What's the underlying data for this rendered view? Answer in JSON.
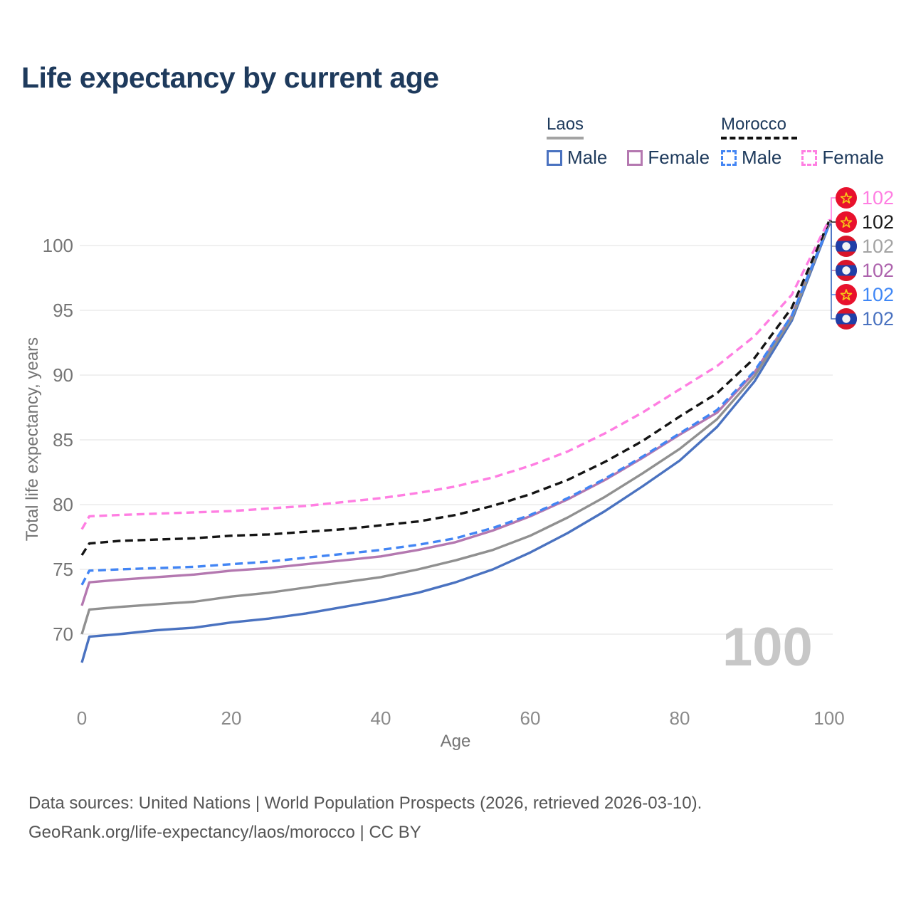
{
  "title": "Life expectancy by current age",
  "legend": {
    "groups": [
      {
        "label": "Laos",
        "line_style": "solid",
        "line_color": "#a3a3a3",
        "items": [
          {
            "label": "Male",
            "color": "#4a72c0",
            "dashed": false
          },
          {
            "label": "Female",
            "color": "#b478b0",
            "dashed": false
          }
        ]
      },
      {
        "label": "Morocco",
        "line_style": "dashed",
        "line_color": "#111111",
        "items": [
          {
            "label": "Male",
            "color": "#4285f4",
            "dashed": true
          },
          {
            "label": "Female",
            "color": "#ff7ee2",
            "dashed": true
          }
        ]
      }
    ]
  },
  "chart_data": {
    "type": "line",
    "title": "Life expectancy by current age",
    "xlabel": "Age",
    "ylabel": "Total life expectancy, years",
    "xlim": [
      0,
      100
    ],
    "ylim": [
      66.5,
      103
    ],
    "x_ticks": [
      0,
      20,
      40,
      60,
      80,
      100
    ],
    "y_ticks": [
      70,
      75,
      80,
      85,
      90,
      95,
      100
    ],
    "grid": "horizontal",
    "x": [
      0,
      1,
      5,
      10,
      15,
      20,
      25,
      30,
      35,
      40,
      45,
      50,
      55,
      60,
      65,
      70,
      75,
      80,
      85,
      90,
      95,
      100
    ],
    "series": [
      {
        "name": "Laos Male",
        "country": "Laos",
        "sex": "Male",
        "color": "#4a72c0",
        "label_color": "#4a72c0",
        "dashed": false,
        "flag": "laos",
        "end_value_label": "102",
        "values": [
          67.8,
          69.8,
          70.0,
          70.3,
          70.5,
          70.9,
          71.2,
          71.6,
          72.1,
          72.6,
          73.2,
          74.0,
          75.0,
          76.3,
          77.8,
          79.5,
          81.4,
          83.4,
          86.0,
          89.5,
          94.2,
          101.6
        ]
      },
      {
        "name": "Laos Female",
        "country": "Laos",
        "sex": "Female",
        "color": "#b478b0",
        "label_color": "#ad63ad",
        "dashed": false,
        "flag": "laos",
        "end_value_label": "102",
        "values": [
          72.2,
          74.0,
          74.2,
          74.4,
          74.6,
          74.9,
          75.1,
          75.4,
          75.7,
          76.0,
          76.5,
          77.1,
          78.0,
          79.1,
          80.4,
          81.9,
          83.6,
          85.4,
          87.1,
          90.2,
          94.6,
          101.7
        ]
      },
      {
        "name": "Laos Both sexes",
        "country": "Laos",
        "sex": "Both",
        "color": "#909090",
        "label_color": "#a3a3a3",
        "dashed": false,
        "flag": "laos",
        "end_value_label": "102",
        "values": [
          70.0,
          71.9,
          72.1,
          72.3,
          72.5,
          72.9,
          73.2,
          73.6,
          74.0,
          74.4,
          75.0,
          75.7,
          76.5,
          77.6,
          79.0,
          80.6,
          82.4,
          84.3,
          86.6,
          89.9,
          94.4,
          101.75
        ]
      },
      {
        "name": "Morocco Male",
        "country": "Morocco",
        "sex": "Male",
        "color": "#4285f4",
        "label_color": "#3f87f6",
        "dashed": true,
        "flag": "morocco",
        "end_value_label": "102",
        "values": [
          73.8,
          74.9,
          75.0,
          75.1,
          75.2,
          75.4,
          75.6,
          75.9,
          76.2,
          76.5,
          76.9,
          77.4,
          78.2,
          79.2,
          80.5,
          82.0,
          83.7,
          85.5,
          87.3,
          90.3,
          94.6,
          101.65
        ]
      },
      {
        "name": "Morocco Both sexes",
        "country": "Morocco",
        "sex": "Both",
        "color": "#141414",
        "label_color": "#1a1a1a",
        "dashed": true,
        "flag": "morocco",
        "end_value_label": "102",
        "values": [
          76.1,
          77.0,
          77.2,
          77.3,
          77.4,
          77.6,
          77.7,
          77.9,
          78.1,
          78.4,
          78.7,
          79.2,
          79.9,
          80.8,
          81.9,
          83.3,
          84.9,
          86.8,
          88.6,
          91.3,
          95.2,
          101.9
        ]
      },
      {
        "name": "Morocco Female",
        "country": "Morocco",
        "sex": "Female",
        "color": "#ff7ee2",
        "label_color": "#ff7ee2",
        "dashed": true,
        "flag": "morocco",
        "end_value_label": "102",
        "values": [
          78.1,
          79.1,
          79.2,
          79.3,
          79.4,
          79.5,
          79.7,
          79.9,
          80.2,
          80.5,
          80.9,
          81.4,
          82.1,
          83.0,
          84.1,
          85.5,
          87.1,
          88.9,
          90.7,
          93.0,
          96.2,
          102.0
        ]
      }
    ],
    "legend_position": "top-right"
  },
  "watermark": "100",
  "footer": {
    "line1": "Data sources: United Nations | World Population Prospects (2026, retrieved 2026-03-10).",
    "line2": "GeoRank.org/life-expectancy/laos/morocco | CC BY"
  },
  "flag_colors": {
    "laos_red": "#d8152a",
    "laos_blue": "#1f3fa8",
    "morocco_red": "#e8112d",
    "morocco_star": "#f7c917"
  }
}
